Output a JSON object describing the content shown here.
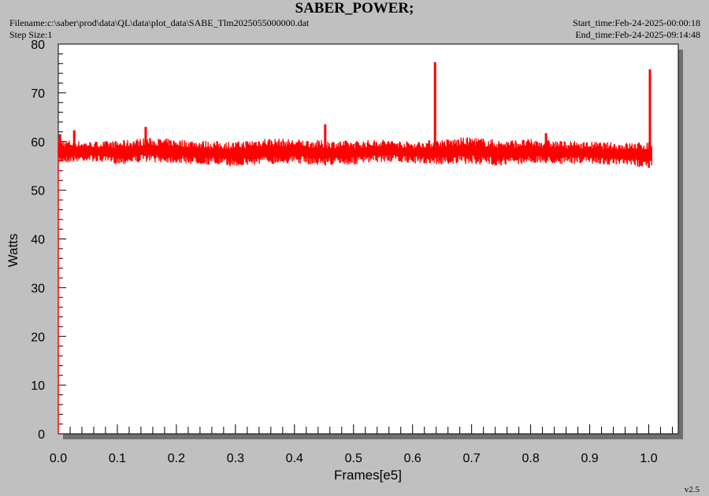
{
  "header": {
    "title": "SABER_POWER;",
    "filename": "Filename:c:\\saber\\prod\\data\\QL\\data\\plot_data\\SABE_Tlm2025055000000.dat",
    "step_size": "Step Size:1",
    "start_time": "Start_time:Feb-24-2025-00:00:18",
    "end_time": "End_time:Feb-24-2025-09:14:48",
    "version": "v2.5"
  },
  "chart_data": {
    "type": "line",
    "title": "SABER_POWER;",
    "xlabel": "Frames[e5]",
    "ylabel": "Watts",
    "xlim": [
      0.0,
      1.05
    ],
    "ylim": [
      0,
      80
    ],
    "x_ticks": [
      "0.0",
      "0.1",
      "0.2",
      "0.3",
      "0.4",
      "0.5",
      "0.6",
      "0.7",
      "0.8",
      "0.9",
      "1.0"
    ],
    "y_ticks": [
      "0",
      "10",
      "20",
      "30",
      "40",
      "50",
      "60",
      "70",
      "80"
    ],
    "grid": false,
    "color": "#ff0000",
    "series": [
      {
        "band": {
          "x": [
            0.0,
            0.05,
            0.1,
            0.15,
            0.2,
            0.25,
            0.3,
            0.35,
            0.4,
            0.45,
            0.5,
            0.55,
            0.6,
            0.65,
            0.7,
            0.75,
            0.8,
            0.85,
            0.9,
            0.95,
            1.005
          ],
          "low": [
            55.5,
            56.0,
            55.3,
            55.8,
            55.5,
            55.2,
            54.8,
            55.3,
            55.5,
            55.0,
            55.2,
            55.8,
            55.5,
            55.2,
            55.3,
            55.0,
            55.5,
            55.3,
            55.5,
            55.0,
            54.5
          ],
          "high": [
            60.5,
            60.0,
            60.2,
            60.8,
            60.5,
            60.2,
            60.0,
            60.8,
            60.5,
            60.3,
            60.2,
            60.5,
            60.0,
            60.5,
            61.0,
            60.3,
            60.5,
            60.2,
            60.0,
            59.8,
            60.0
          ]
        },
        "spikes": [
          {
            "x": 0.003,
            "y": 61.5
          },
          {
            "x": 0.027,
            "y": 62.3
          },
          {
            "x": 0.148,
            "y": 63.0
          },
          {
            "x": 0.452,
            "y": 63.5
          },
          {
            "x": 0.638,
            "y": 76.3
          },
          {
            "x": 0.826,
            "y": 61.7
          },
          {
            "x": 1.002,
            "y": 74.8
          }
        ]
      }
    ]
  }
}
